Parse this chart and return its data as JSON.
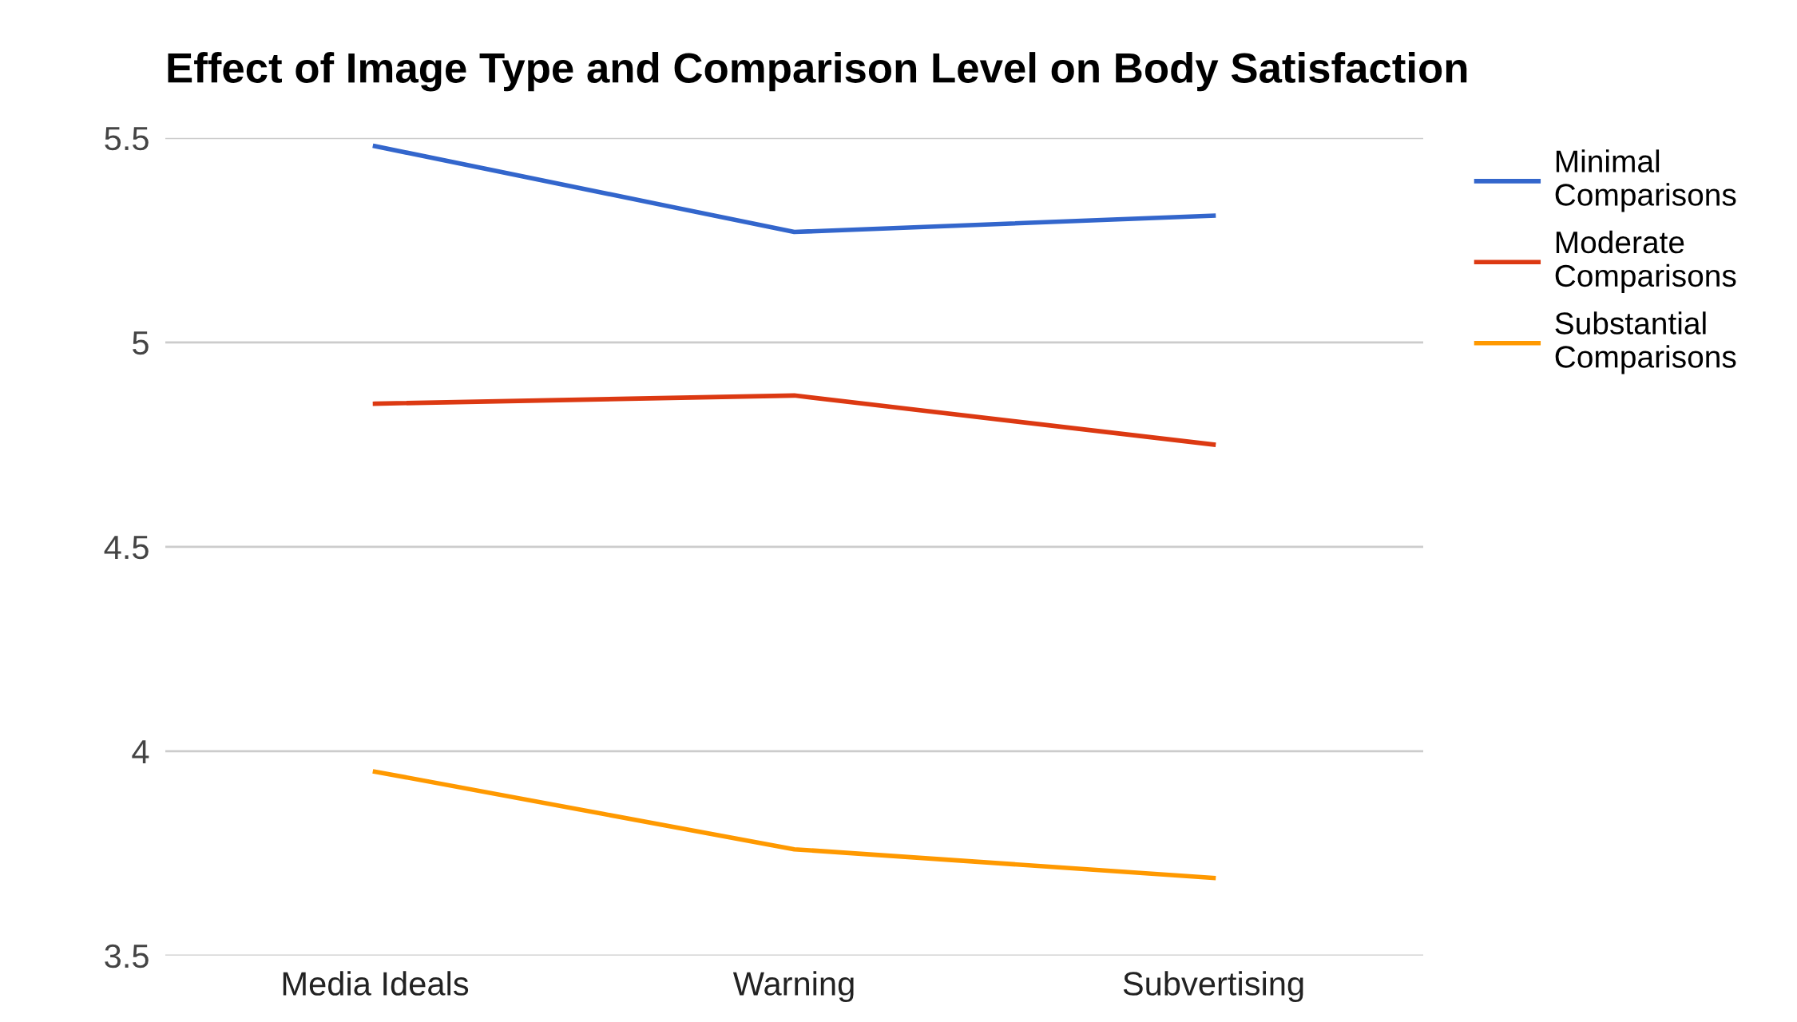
{
  "chart_data": {
    "type": "line",
    "title": "Effect of Image Type and Comparison Level on Body Satisfaction",
    "categories": [
      "Media Ideals",
      "Warning",
      "Subvertising"
    ],
    "series": [
      {
        "name": "Minimal Comparisons",
        "color": "#3366cc",
        "values": [
          5.48,
          5.27,
          5.31
        ]
      },
      {
        "name": "Moderate Comparisons",
        "color": "#dc3912",
        "values": [
          4.85,
          4.87,
          4.75
        ]
      },
      {
        "name": "Substantial Comparisons",
        "color": "#ff9900",
        "values": [
          3.95,
          3.76,
          3.69
        ]
      }
    ],
    "ylim": [
      3.5,
      5.5
    ],
    "yticks": [
      3.5,
      4,
      4.5,
      5,
      5.5
    ],
    "grid": "y",
    "legend": "right",
    "marker": "none",
    "line_style": "solid"
  }
}
